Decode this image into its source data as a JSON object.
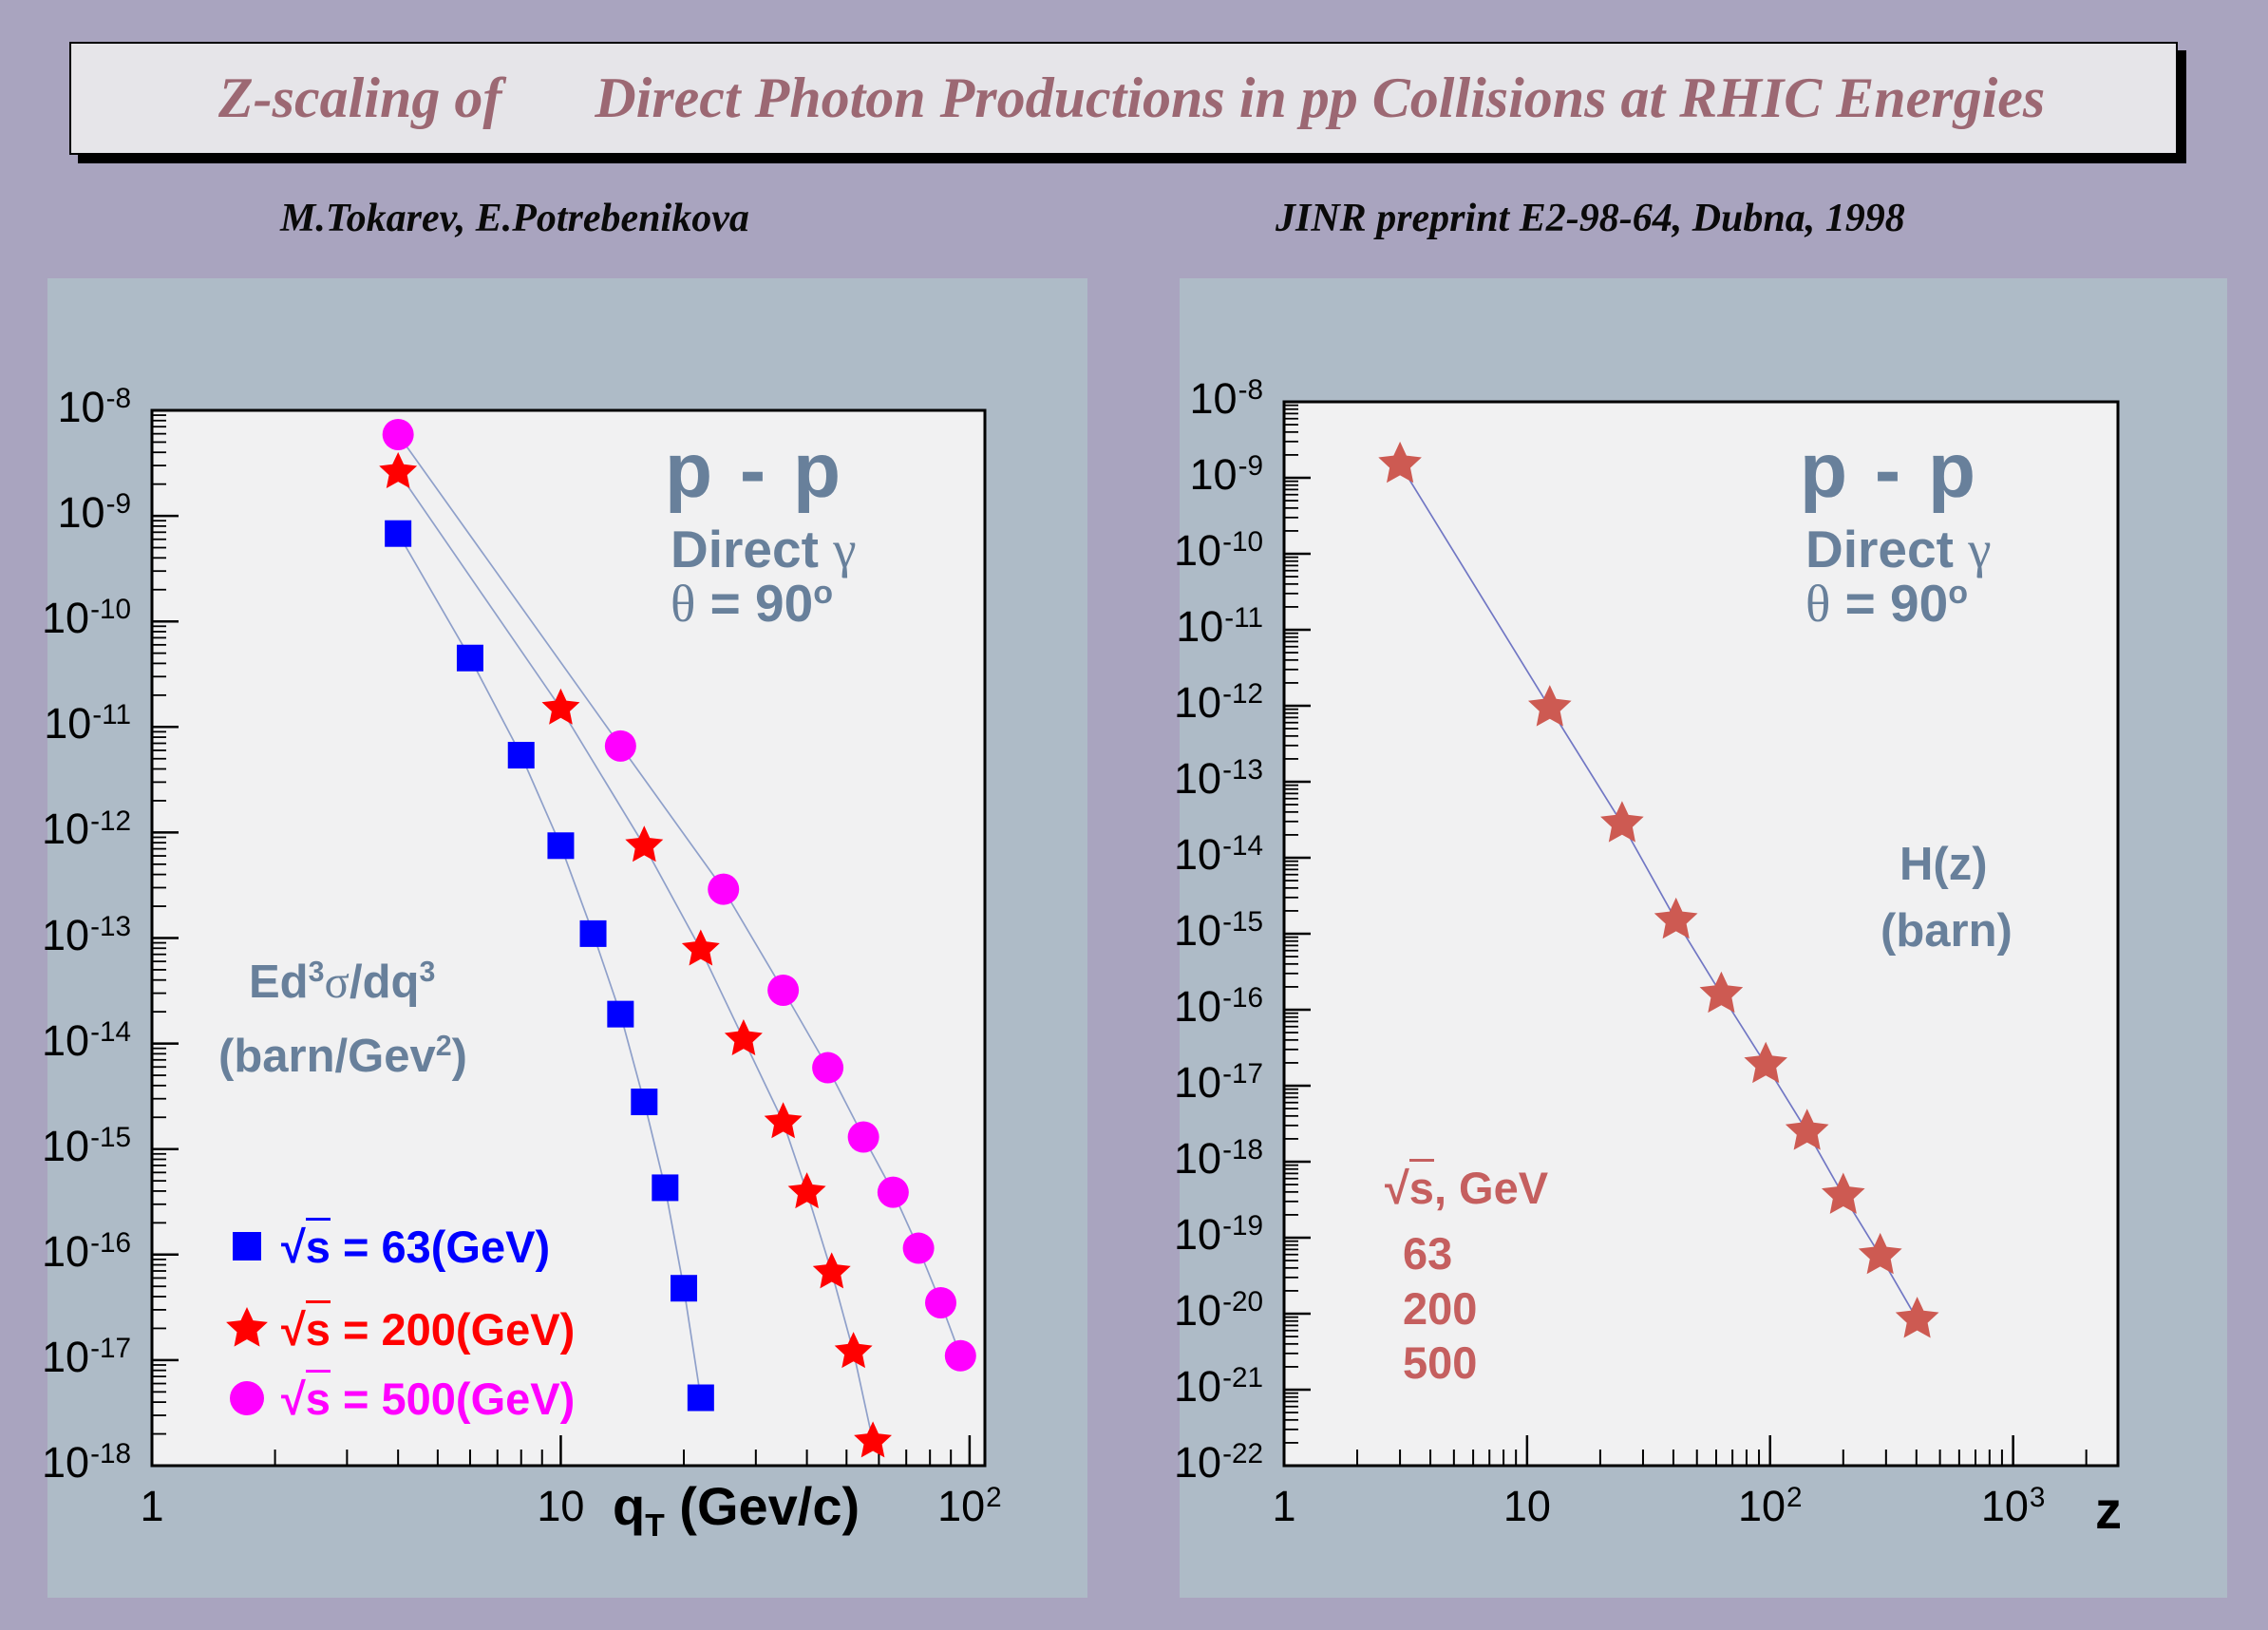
{
  "page": {
    "background": "#a9a4bf",
    "panel_color": "#aebbc7",
    "plot_background": "#f1f1f2"
  },
  "banner": {
    "title_part1": "Z-scaling of",
    "title_part2": "Direct Photon Productions in pp Collisions at RHIC Energies",
    "text_color": "#9c6873",
    "background": "#e6e5e9"
  },
  "header": {
    "authors": "M.Tokarev, E.Potrebenikova",
    "preprint": "JINR preprint E2-98-64, Dubna, 1998"
  },
  "left_plot": {
    "reaction": "p - p",
    "process": "Direct ",
    "process_symbol": "γ",
    "angle_prefix": "θ",
    "angle_mid": " = 90",
    "angle_sup": "o",
    "ylabel_l1a": "Ed",
    "ylabel_l1a_sup": "3",
    "ylabel_l1sigma": "σ",
    "ylabel_l1b": "/dq",
    "ylabel_l1b_sup": "3",
    "ylabel_l2a": "(barn/Gev",
    "ylabel_l2a_sup": "2",
    "ylabel_l2b": ")",
    "xtitle_base": "q",
    "xtitle_sub": "T",
    "xtitle_rest": " (Gev/c)",
    "text_color": "#68809b",
    "legend": [
      {
        "marker": "square",
        "color": "#0000ff",
        "radical": "√",
        "arg": "s",
        "rest": " = 63(GeV)"
      },
      {
        "marker": "star",
        "color": "#ff0000",
        "radical": "√",
        "arg": "s",
        "rest": " = 200(GeV)"
      },
      {
        "marker": "circle",
        "color": "#ff00ff",
        "radical": "√",
        "arg": "s",
        "rest": " = 500(GeV)"
      }
    ]
  },
  "right_plot": {
    "reaction": "p - p",
    "process": "Direct ",
    "process_symbol": "γ",
    "angle_prefix": "θ",
    "angle_mid": " = 90",
    "angle_sup": "o",
    "hz_label": "H(z)",
    "hz_unit": "(barn)",
    "energy_radical": "√",
    "energy_arg": "s",
    "energy_rest": ", GeV",
    "energies": [
      "63",
      "200",
      "500"
    ],
    "xtitle": "z",
    "text_color": "#68809b",
    "accent_color": "#c55f5f"
  },
  "chart_data": [
    {
      "id": "left",
      "type": "scatter",
      "title": "p - p, Direct γ, θ = 90°",
      "xlabel": "q_T (Gev/c)",
      "ylabel": "Ed^3σ/dq^3 (barn/Gev^2)",
      "xscale": "log",
      "yscale": "log",
      "xlim": [
        1,
        109
      ],
      "ylim": [
        1e-18,
        1e-08
      ],
      "grid": false,
      "legend_position": "lower-left",
      "x_ticks": [
        {
          "v": 1,
          "label": "1"
        },
        {
          "v": 10,
          "label": "10"
        },
        {
          "v": 100,
          "label": "10",
          "exp": "2"
        }
      ],
      "y_tick_exponents": [
        -8,
        -9,
        -10,
        -11,
        -12,
        -13,
        -14,
        -15,
        -16,
        -17,
        -18
      ],
      "line_color": "#8fa0ca",
      "series": [
        {
          "name": "sqrt(s) = 63 GeV",
          "color": "#0000ff",
          "marker": "square",
          "points": [
            [
              4,
              6.8e-10
            ],
            [
              6,
              4.5e-11
            ],
            [
              8,
              5.4e-12
            ],
            [
              10,
              7.5e-13
            ],
            [
              12,
              1.1e-13
            ],
            [
              14,
              1.9e-14
            ],
            [
              16,
              2.8e-15
            ],
            [
              18,
              4.3e-16
            ],
            [
              20,
              4.8e-17
            ],
            [
              22,
              4.4e-18
            ]
          ]
        },
        {
          "name": "sqrt(s) = 200 GeV",
          "color": "#ff0000",
          "marker": "star",
          "points": [
            [
              4,
              2.6e-09
            ],
            [
              10,
              1.5e-11
            ],
            [
              16,
              7.5e-13
            ],
            [
              22,
              7.8e-14
            ],
            [
              28,
              1.1e-14
            ],
            [
              35,
              1.8e-15
            ],
            [
              40,
              3.9e-16
            ],
            [
              46,
              6.8e-17
            ],
            [
              52,
              1.2e-17
            ],
            [
              58,
              1.7e-18
            ]
          ]
        },
        {
          "name": "sqrt(s) = 500 GeV",
          "color": "#ff00ff",
          "marker": "circle",
          "points": [
            [
              4,
              5.9e-09
            ],
            [
              14,
              6.6e-12
            ],
            [
              25,
              2.9e-13
            ],
            [
              35,
              3.2e-14
            ],
            [
              45,
              5.9e-15
            ],
            [
              55,
              1.3e-15
            ],
            [
              65,
              3.9e-16
            ],
            [
              75,
              1.15e-16
            ],
            [
              85,
              3.5e-17
            ],
            [
              95,
              1.1e-17
            ]
          ]
        }
      ]
    },
    {
      "id": "right",
      "type": "scatter",
      "title": "p - p, Direct γ, θ = 90°",
      "xlabel": "z",
      "ylabel": "H(z) (barn)",
      "xscale": "log",
      "yscale": "log",
      "xlim": [
        1,
        2700
      ],
      "ylim": [
        1e-22,
        1e-08
      ],
      "grid": false,
      "x_ticks": [
        {
          "v": 1,
          "label": "1"
        },
        {
          "v": 10,
          "label": "10"
        },
        {
          "v": 100,
          "label": "10",
          "exp": "2"
        },
        {
          "v": 1000,
          "label": "10",
          "exp": "3"
        }
      ],
      "y_tick_exponents": [
        -8,
        -9,
        -10,
        -11,
        -12,
        -13,
        -14,
        -15,
        -16,
        -17,
        -18,
        -19,
        -20,
        -21,
        -22
      ],
      "line_color": "#7177c4",
      "series": [
        {
          "name": "H(z), sqrt(s) = 63, 200, 500 GeV",
          "color": "#cd5a52",
          "marker": "star",
          "points": [
            [
              3,
              1.5e-09
            ],
            [
              12.4,
              9.4e-13
            ],
            [
              24.6,
              2.8e-14
            ],
            [
              41,
              1.5e-15
            ],
            [
              63,
              1.6e-16
            ],
            [
              96,
              1.9e-17
            ],
            [
              142,
              2.5e-18
            ],
            [
              200,
              3.6e-19
            ],
            [
              284,
              5.8e-20
            ],
            [
              403,
              8.4e-21
            ]
          ]
        }
      ]
    }
  ]
}
